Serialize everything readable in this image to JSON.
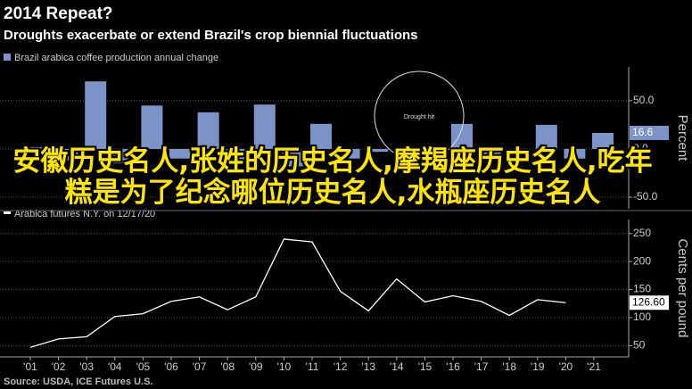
{
  "title": "2014 Repeat?",
  "subtitle": "Droughts exacerbate or extend Brazil's crop biennial fluctuations",
  "source": "Source: USDA, ICE Futures U.S.",
  "overlay_text": "安徽历史名人,张姓的历史名人,摩羯座历史名人,吃年糕是为了纪念哪位历史名人,水瓶座历史名人",
  "chart_data": [
    {
      "type": "bar",
      "legend": "Brazil arabica coffee production annual change",
      "y_label": "Percent",
      "annotation": "Drought hit",
      "color": "#7b93c6",
      "values": [
        2,
        -12,
        70,
        -15,
        45,
        -10,
        38,
        -12,
        46,
        -18,
        26,
        -10,
        -3,
        -15,
        -5,
        26,
        -12,
        -3,
        25,
        -10,
        16.6
      ],
      "ylim": [
        -62,
        85
      ],
      "yticks": [
        {
          "value": -50,
          "label": "-50.0"
        },
        {
          "value": 0,
          "label": "0.0"
        },
        {
          "value": 50,
          "label": "50.0"
        }
      ],
      "last_value_label": "16.6",
      "grid": true
    },
    {
      "type": "line",
      "legend": "Arabica futures N.Y. on 12/17/20",
      "y_label": "Cents per pound",
      "color": "#ffffff",
      "categories": [
        "'01",
        "'02",
        "'03",
        "'04",
        "'05",
        "'06",
        "'07",
        "'08",
        "'09",
        "'10",
        "'11",
        "'12",
        "'13",
        "'14",
        "'15",
        "'16",
        "'17",
        "'18",
        "'19",
        "'20",
        "'21"
      ],
      "values": [
        47,
        62,
        66,
        102,
        107,
        129,
        137,
        114,
        137,
        240,
        235,
        147,
        112,
        169,
        128,
        139,
        129,
        104,
        132,
        126.6,
        null
      ],
      "ylim": [
        30,
        275
      ],
      "yticks": [
        50,
        100,
        150,
        200,
        250
      ],
      "last_value_label": "126.60",
      "grid": true
    }
  ]
}
